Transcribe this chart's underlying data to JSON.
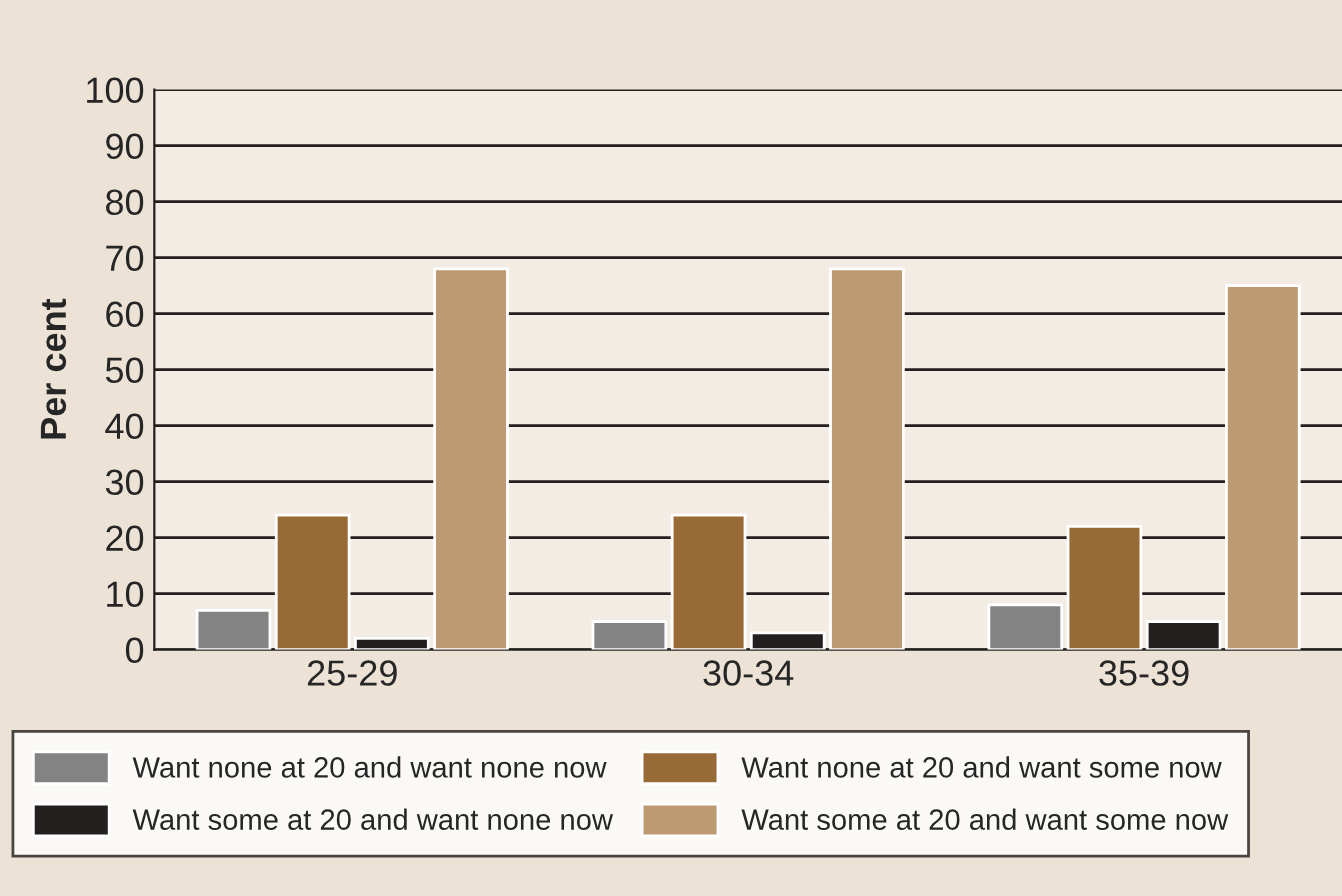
{
  "chart_data": {
    "type": "bar",
    "ylabel": "Per cent",
    "categories": [
      "25-29",
      "30-34",
      "35-39"
    ],
    "series": [
      {
        "name": "Want none at 20 and want none now",
        "color": "#838383",
        "values": [
          7,
          5,
          8
        ]
      },
      {
        "name": "Want none at 20 and want some now",
        "color": "#986a36",
        "values": [
          24,
          24,
          22
        ]
      },
      {
        "name": "Want some at 20 and want none now",
        "color": "#231f1e",
        "values": [
          2,
          3,
          5
        ]
      },
      {
        "name": "Want some at 20 and want some now",
        "color": "#bd9a72",
        "values": [
          68,
          68,
          65
        ]
      }
    ],
    "ylim": [
      0,
      100
    ],
    "yticks": [
      0,
      10,
      20,
      30,
      40,
      50,
      60,
      70,
      80,
      90,
      100
    ],
    "grid": "y",
    "legend": "bottom"
  }
}
